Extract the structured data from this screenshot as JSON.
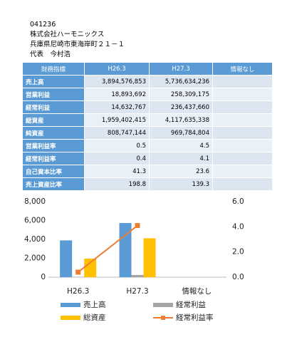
{
  "header": {
    "code": "041236",
    "company": "株式会社ハーモニックス",
    "address": "兵庫県尼崎市東海岸町２１－１",
    "representative": "代表　今村浩"
  },
  "table": {
    "header": [
      "財務指標",
      "H26.3",
      "H27.3",
      "情報なし"
    ],
    "rows": [
      [
        "売上高",
        "3,894,576,853",
        "5,736,634,236",
        ""
      ],
      [
        "営業利益",
        "18,893,692",
        "258,309,175",
        ""
      ],
      [
        "経常利益",
        "14,632,767",
        "236,437,660",
        ""
      ],
      [
        "総資産",
        "1,959,402,415",
        "4,117,635,338",
        ""
      ],
      [
        "純資産",
        "808,747,144",
        "969,784,804",
        ""
      ],
      [
        "営業利益率",
        "0.5",
        "4.5",
        ""
      ],
      [
        "経常利益率",
        "0.4",
        "4.1",
        ""
      ],
      [
        "自己資本比率",
        "41.3",
        "23.6",
        ""
      ],
      [
        "売上資産比率",
        "198.8",
        "139.3",
        ""
      ]
    ]
  },
  "chart_data": {
    "type": "bar",
    "categories": [
      "H26.3",
      "H27.3",
      "情報なし"
    ],
    "series": [
      {
        "name": "売上高",
        "color": "#5b9bd5",
        "values": [
          3895,
          5737,
          null
        ]
      },
      {
        "name": "経常利益",
        "color": "#a5a5a5",
        "values": [
          15,
          236,
          null
        ]
      },
      {
        "name": "総資産",
        "color": "#ffc000",
        "values": [
          1959,
          4118,
          null
        ]
      },
      {
        "name": "経常利益率",
        "color": "#ed7d31",
        "type": "line",
        "axis": "y2",
        "values": [
          0.4,
          4.1,
          null
        ]
      }
    ],
    "ylim": [
      0,
      8000
    ],
    "yticks": [
      0,
      {
        "value": 2000,
        "label": "2,000"
      },
      {
        "value": 4000,
        "label": "4,000"
      },
      {
        "value": 6000,
        "label": "6,000"
      },
      {
        "value": 8000,
        "label": "8,000"
      }
    ],
    "y2lim": [
      0,
      6
    ],
    "y2ticks": [
      {
        "value": 0,
        "label": "0.0"
      },
      {
        "value": 2,
        "label": "2.0"
      },
      {
        "value": 4,
        "label": "4.0"
      },
      {
        "value": 6,
        "label": "6.0"
      }
    ]
  }
}
